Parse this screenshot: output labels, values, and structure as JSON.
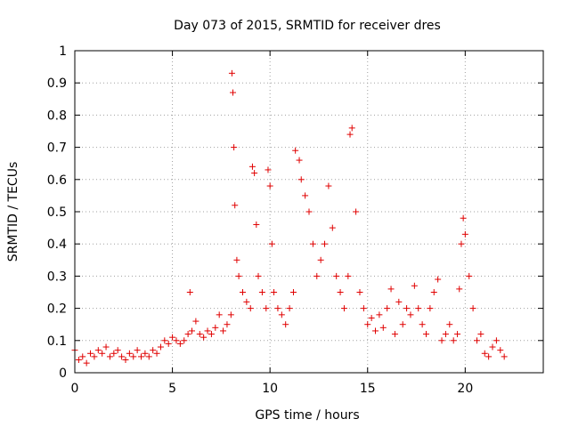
{
  "chart_data": {
    "type": "scatter",
    "title": "Day 073 of 2015, SRMTID for receiver dres",
    "xlabel": "GPS time / hours",
    "ylabel": "SRMTID / TECUs",
    "xlim": [
      0,
      24
    ],
    "ylim": [
      0,
      1
    ],
    "x_ticks": [
      0,
      5,
      10,
      15,
      20
    ],
    "x_tick_labels": [
      "0",
      "5",
      "10",
      "15",
      "20"
    ],
    "y_ticks": [
      0,
      0.1,
      0.2,
      0.3,
      0.4,
      0.5,
      0.6,
      0.7,
      0.8,
      0.9,
      1
    ],
    "y_tick_labels": [
      "0",
      "0.1",
      "0.2",
      "0.3",
      "0.4",
      "0.5",
      "0.6",
      "0.7",
      "0.8",
      "0.9",
      "1"
    ],
    "grid": true,
    "marker": "+",
    "marker_color": "#e00000",
    "series": [
      {
        "name": "SRMTID",
        "x": [
          0.0,
          0.2,
          0.4,
          0.6,
          0.8,
          1.0,
          1.2,
          1.4,
          1.6,
          1.8,
          2.0,
          2.2,
          2.4,
          2.6,
          2.8,
          3.0,
          3.2,
          3.4,
          3.6,
          3.8,
          4.0,
          4.2,
          4.4,
          4.6,
          4.8,
          5.0,
          5.2,
          5.4,
          5.6,
          5.8,
          5.9,
          6.0,
          6.2,
          6.4,
          6.6,
          6.8,
          7.0,
          7.2,
          7.4,
          7.6,
          7.8,
          8.0,
          8.05,
          8.1,
          8.15,
          8.2,
          8.3,
          8.4,
          8.6,
          8.8,
          9.0,
          9.1,
          9.2,
          9.3,
          9.4,
          9.6,
          9.8,
          9.9,
          10.0,
          10.1,
          10.2,
          10.4,
          10.6,
          10.8,
          11.0,
          11.2,
          11.3,
          11.5,
          11.6,
          11.8,
          12.0,
          12.2,
          12.4,
          12.6,
          12.8,
          13.0,
          13.2,
          13.4,
          13.6,
          13.8,
          14.0,
          14.1,
          14.2,
          14.4,
          14.6,
          14.8,
          15.0,
          15.2,
          15.4,
          15.6,
          15.8,
          16.0,
          16.2,
          16.4,
          16.6,
          16.8,
          17.0,
          17.2,
          17.4,
          17.6,
          17.8,
          18.0,
          18.2,
          18.4,
          18.6,
          18.8,
          19.0,
          19.2,
          19.4,
          19.6,
          19.7,
          19.8,
          19.9,
          20.0,
          20.2,
          20.4,
          20.6,
          20.8,
          21.0,
          21.2,
          21.4,
          21.6,
          21.8,
          22.0
        ],
        "y": [
          0.07,
          0.04,
          0.05,
          0.03,
          0.06,
          0.05,
          0.07,
          0.06,
          0.08,
          0.05,
          0.06,
          0.07,
          0.05,
          0.04,
          0.06,
          0.05,
          0.07,
          0.05,
          0.06,
          0.05,
          0.07,
          0.06,
          0.08,
          0.1,
          0.09,
          0.11,
          0.1,
          0.09,
          0.1,
          0.12,
          0.25,
          0.13,
          0.16,
          0.12,
          0.11,
          0.13,
          0.12,
          0.14,
          0.18,
          0.13,
          0.15,
          0.18,
          0.93,
          0.87,
          0.7,
          0.52,
          0.35,
          0.3,
          0.25,
          0.22,
          0.2,
          0.64,
          0.62,
          0.46,
          0.3,
          0.25,
          0.2,
          0.63,
          0.58,
          0.4,
          0.25,
          0.2,
          0.18,
          0.15,
          0.2,
          0.25,
          0.69,
          0.66,
          0.6,
          0.55,
          0.5,
          0.4,
          0.3,
          0.35,
          0.4,
          0.58,
          0.45,
          0.3,
          0.25,
          0.2,
          0.3,
          0.74,
          0.76,
          0.5,
          0.25,
          0.2,
          0.15,
          0.17,
          0.13,
          0.18,
          0.14,
          0.2,
          0.26,
          0.12,
          0.22,
          0.15,
          0.2,
          0.18,
          0.27,
          0.2,
          0.15,
          0.12,
          0.2,
          0.25,
          0.29,
          0.1,
          0.12,
          0.15,
          0.1,
          0.12,
          0.26,
          0.4,
          0.48,
          0.43,
          0.3,
          0.2,
          0.1,
          0.12,
          0.06,
          0.05,
          0.08,
          0.1,
          0.07,
          0.05
        ]
      }
    ]
  }
}
